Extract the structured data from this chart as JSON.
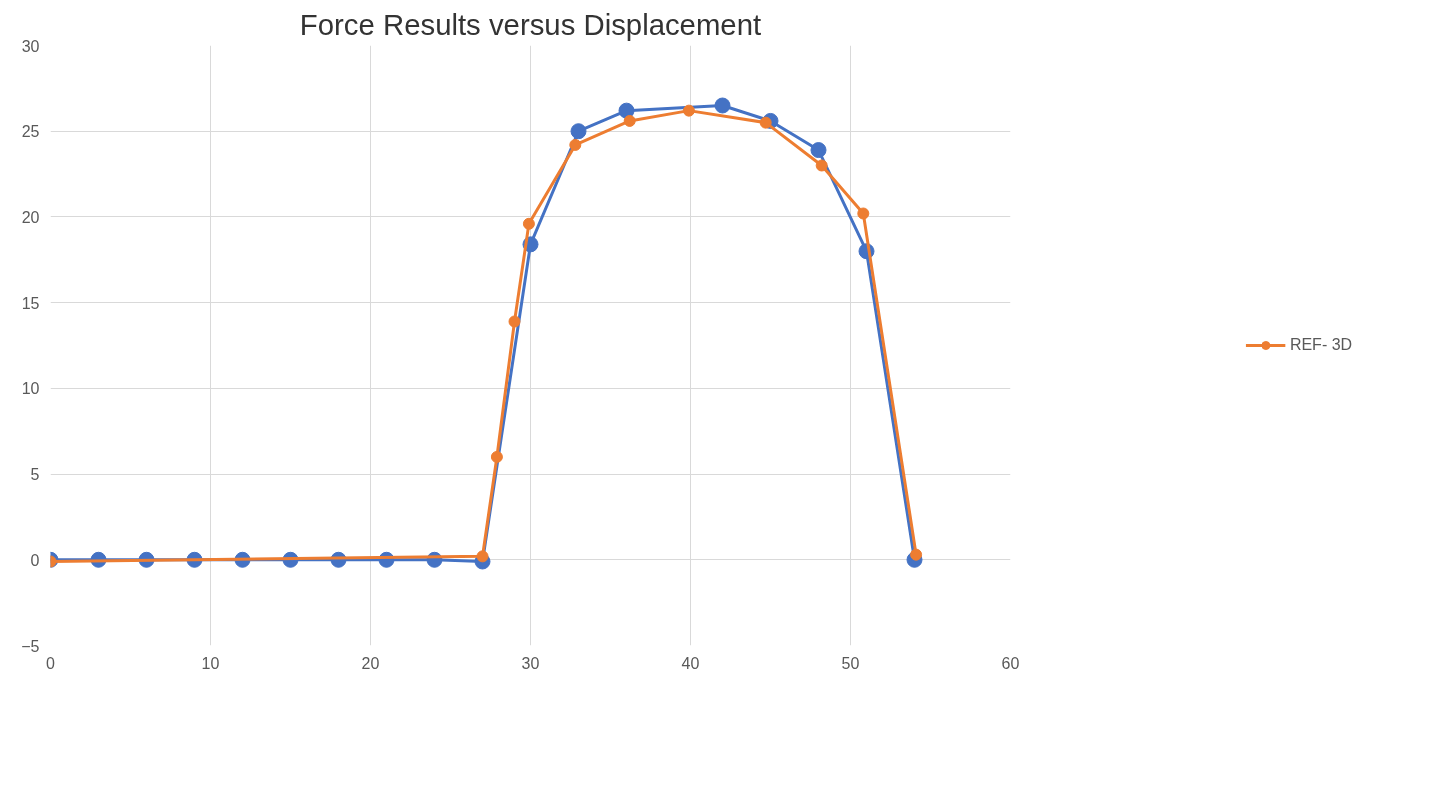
{
  "chart_data": {
    "type": "line",
    "title": "Force Results versus Displacement",
    "xlim": [
      0,
      60
    ],
    "xticks": [
      0,
      10,
      20,
      30,
      40,
      50,
      60
    ],
    "ylim": [
      -5,
      30
    ],
    "yticks": [
      -5,
      0,
      5,
      10,
      15,
      20,
      25,
      30
    ],
    "grid": true,
    "legend": "right",
    "marker": "circle",
    "line_style": "solid",
    "series": [
      {
        "color": "#4472c4",
        "x": [
          0,
          3,
          6,
          9,
          12,
          15,
          18,
          21,
          24,
          27,
          30,
          33,
          36,
          42,
          45,
          48,
          51,
          54
        ],
        "values": [
          0,
          0,
          0,
          0,
          0,
          0,
          0,
          0,
          0,
          -0.1,
          18.4,
          25.0,
          26.2,
          26.5,
          25.6,
          23.9,
          18.0,
          0
        ]
      },
      {
        "name": "REF- 3D",
        "color": "#ed7d31",
        "x": [
          0,
          27,
          27.9,
          29,
          29.9,
          32.8,
          36.2,
          39.9,
          44.7,
          48.2,
          50.8,
          54.1
        ],
        "values": [
          -0.1,
          0.2,
          6.0,
          13.9,
          19.6,
          24.2,
          25.6,
          26.2,
          25.5,
          23.0,
          20.2,
          0.3
        ]
      }
    ]
  }
}
